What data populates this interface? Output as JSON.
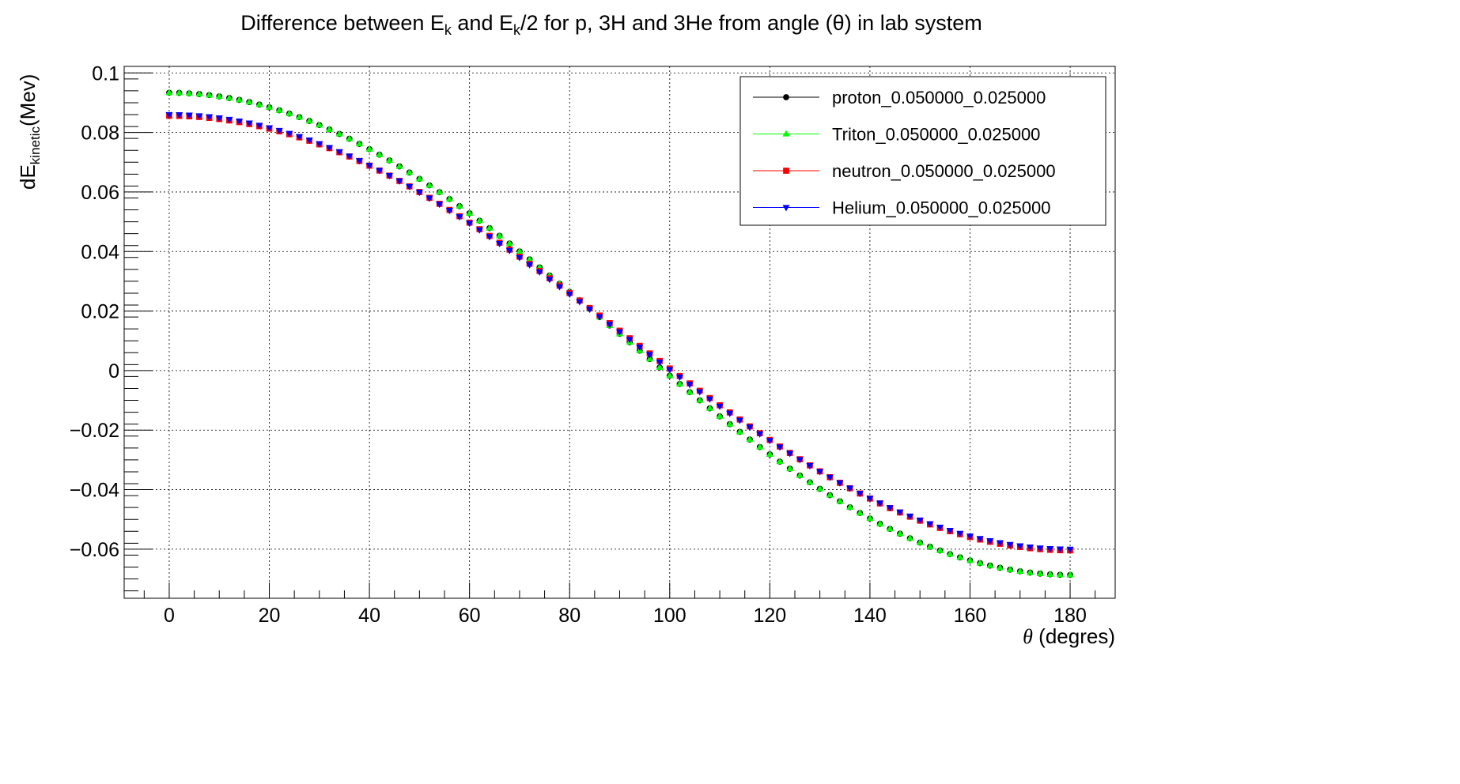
{
  "chart_data": {
    "type": "scatter",
    "title_parts": [
      "Difference between E",
      "k",
      " and E",
      "k",
      "/2 for p, 3H and 3He from angle (θ) in lab system"
    ],
    "xlabel_symbol": "θ",
    "xlabel_text": " (degres)",
    "ylabel_parts": [
      "dE",
      "kinetic",
      "(Mev)"
    ],
    "xlim": [
      -9,
      189
    ],
    "ylim": [
      -0.0765,
      0.1022
    ],
    "xticks": [
      0,
      20,
      40,
      60,
      80,
      100,
      120,
      140,
      160,
      180
    ],
    "xtick_labels": [
      "0",
      "20",
      "40",
      "60",
      "80",
      "100",
      "120",
      "140",
      "160",
      "180"
    ],
    "yticks": [
      0.1,
      0.08,
      0.06,
      0.04,
      0.02,
      0,
      -0.02,
      -0.04,
      -0.06
    ],
    "ytick_labels": [
      "0.1",
      "0.08",
      "0.06",
      "0.04",
      "0.02",
      "0",
      "−0.02",
      "−0.04",
      "−0.06"
    ],
    "grid": true,
    "legend_position": "top-right",
    "x_start": 0,
    "x_end": 180,
    "x_step": 2,
    "series": [
      {
        "name": "proton_0.050000_0.025000",
        "color": "#000000",
        "marker": "circle",
        "curve": {
          "c": 0.01235,
          "a": 0.081,
          "b": 0.0
        }
      },
      {
        "name": "Triton_0.050000_0.025000",
        "color": "#00ff00",
        "marker": "triangle-up",
        "curve": {
          "c": 0.01235,
          "a": 0.081,
          "b": 0.0
        }
      },
      {
        "name": "neutron_0.050000_0.025000",
        "color": "#ff0000",
        "marker": "square",
        "curve": {
          "c": 0.013,
          "a": 0.073,
          "b": -0.0004
        }
      },
      {
        "name": "Helium_0.050000_0.025000",
        "color": "#0000ff",
        "marker": "triangle-down",
        "curve": {
          "c": 0.013,
          "a": 0.073,
          "b": 0.0
        }
      }
    ]
  }
}
